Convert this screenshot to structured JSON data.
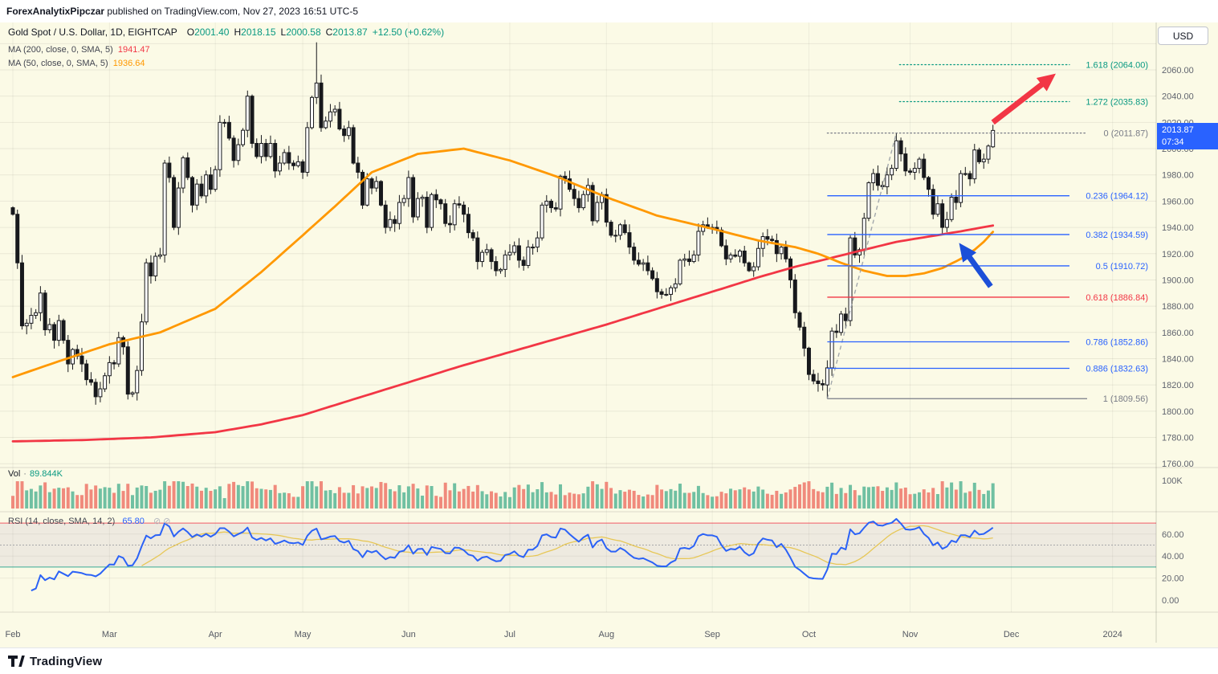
{
  "header": {
    "author": "ForexAnalytixPipczar",
    "published": " published on TradingView.com, Nov 27, 2023 16:51 UTC-5",
    "currency_button": "USD"
  },
  "legend": {
    "title": "Gold Spot / U.S. Dollar, 1D, EIGHTCAP",
    "o_key": "O",
    "o_val": "2001.40",
    "h_key": "H",
    "h_val": "2018.15",
    "l_key": "L",
    "l_val": "2000.58",
    "c_key": "C",
    "c_val": "2013.87",
    "change": "+12.50 (+0.62%)",
    "ma200_label": "MA (200, close, 0, SMA, 5)",
    "ma200_value": "1941.47",
    "ma50_label": "MA (50, close, 0, SMA, 5)",
    "ma50_value": "1936.64",
    "vol_label": "Vol",
    "vol_dot": "·",
    "vol_value": "89.844K",
    "rsi_label": "RSI (14, close, SMA, 14, 2)",
    "rsi_value": "65.80",
    "rsi_hidden_icons": "⊘ ⊘"
  },
  "badge": {
    "price": "2013.87",
    "countdown": "07:34"
  },
  "footer": {
    "brand": "TradingView"
  },
  "chart_data": {
    "type": "candlestick",
    "symbol": "Gold Spot / U.S. Dollar",
    "exchange": "EIGHTCAP",
    "timeframe": "1D",
    "last_ohlc": {
      "open": 2001.4,
      "high": 2018.15,
      "low": 2000.58,
      "close": 2013.87,
      "change": "+12.50 (+0.62%)"
    },
    "y_axis": {
      "min": 1760,
      "max": 2060,
      "step": 20,
      "ticks": [
        2060,
        2040,
        2020,
        2000,
        1980,
        1960,
        1940,
        1920,
        1900,
        1880,
        1860,
        1840,
        1820,
        1800,
        1780,
        1760
      ]
    },
    "x_axis": {
      "months": [
        {
          "label": "Feb",
          "index": 0
        },
        {
          "label": "Mar",
          "index": 21
        },
        {
          "label": "Apr",
          "index": 44
        },
        {
          "label": "May",
          "index": 63
        },
        {
          "label": "Jun",
          "index": 86
        },
        {
          "label": "Jul",
          "index": 108
        },
        {
          "label": "Aug",
          "index": 129
        },
        {
          "label": "Sep",
          "index": 152
        },
        {
          "label": "Oct",
          "index": 173
        },
        {
          "label": "Nov",
          "index": 195
        },
        {
          "label": "Dec",
          "index": 217
        },
        {
          "label": "2024",
          "index": 239
        }
      ]
    },
    "first_open": 1955,
    "closes": [
      1950,
      1913,
      1865,
      1867,
      1873,
      1875,
      1890,
      1862,
      1866,
      1854,
      1869,
      1854,
      1836,
      1847,
      1842,
      1836,
      1824,
      1822,
      1811,
      1817,
      1827,
      1837,
      1836,
      1856,
      1849,
      1813,
      1814,
      1831,
      1868,
      1913,
      1903,
      1918,
      1919,
      1989,
      1978,
      1940,
      1970,
      1993,
      1978,
      1957,
      1973,
      1964,
      1980,
      1969,
      1984,
      2020,
      2020,
      2008,
      1991,
      2003,
      2014,
      2040,
      2004,
      1994,
      2004,
      1994,
      2004,
      1983,
      1989,
      1997,
      1989,
      1987,
      1990,
      1982,
      2016,
      2039,
      2050,
      2016,
      2021,
      2028,
      2030,
      2015,
      2010,
      2016,
      1989,
      1982,
      1957,
      1977,
      1970,
      1975,
      1957,
      1940,
      1946,
      1943,
      1959,
      1962,
      1978,
      1948,
      1962,
      1963,
      1940,
      1965,
      1961,
      1958,
      1943,
      1942,
      1958,
      1957,
      1950,
      1936,
      1932,
      1914,
      1921,
      1923,
      1914,
      1907,
      1908,
      1919,
      1921,
      1926,
      1915,
      1911,
      1925,
      1925,
      1932,
      1957,
      1960,
      1955,
      1954,
      1979,
      1977,
      1969,
      1962,
      1955,
      1965,
      1972,
      1945,
      1959,
      1965,
      1944,
      1934,
      1934,
      1942,
      1936,
      1925,
      1915,
      1912,
      1913,
      1907,
      1901,
      1891,
      1889,
      1889,
      1894,
      1897,
      1915,
      1916,
      1914,
      1919,
      1937,
      1942,
      1940,
      1940,
      1938,
      1926,
      1916,
      1919,
      1918,
      1922,
      1913,
      1907,
      1910,
      1924,
      1933,
      1931,
      1930,
      1920,
      1925,
      1916,
      1900,
      1875,
      1864,
      1848,
      1828,
      1823,
      1821,
      1820,
      1833,
      1861,
      1860,
      1874,
      1869,
      1932,
      1919,
      1923,
      1947,
      1974,
      1981,
      1972,
      1971,
      1980,
      1985,
      2006,
      1996,
      1983,
      1982,
      1985,
      1992,
      1978,
      1969,
      1950,
      1958,
      1940,
      1946,
      1963,
      1959,
      1981,
      1981,
      1977,
      1999,
      1990,
      1992,
      2002,
      2013.87
    ],
    "special_wicks": {
      "66": {
        "high": 2081
      },
      "177": {
        "low": 1809.56
      },
      "192": {
        "high": 2011.87
      }
    },
    "last_candle": {
      "open": 2001.4,
      "high": 2018.15,
      "low": 2000.58,
      "close": 2013.87
    },
    "ma200": {
      "label": "MA 200",
      "color": "#f23645",
      "last_value": 1941.47,
      "anchors": [
        [
          0,
          1777
        ],
        [
          15,
          1778
        ],
        [
          30,
          1780
        ],
        [
          44,
          1784
        ],
        [
          54,
          1790
        ],
        [
          63,
          1797
        ],
        [
          74,
          1809
        ],
        [
          86,
          1822
        ],
        [
          97,
          1834
        ],
        [
          108,
          1845
        ],
        [
          119,
          1856
        ],
        [
          129,
          1866
        ],
        [
          140,
          1878
        ],
        [
          152,
          1891
        ],
        [
          162,
          1902
        ],
        [
          170,
          1910
        ],
        [
          177,
          1916
        ],
        [
          185,
          1923
        ],
        [
          192,
          1929
        ],
        [
          199,
          1933
        ],
        [
          206,
          1937
        ],
        [
          213,
          1941.47
        ]
      ]
    },
    "ma50": {
      "label": "MA 50",
      "color": "#ff9800",
      "last_value": 1936.64,
      "anchors": [
        [
          0,
          1826
        ],
        [
          10,
          1838
        ],
        [
          21,
          1851
        ],
        [
          32,
          1860
        ],
        [
          44,
          1878
        ],
        [
          54,
          1906
        ],
        [
          63,
          1934
        ],
        [
          70,
          1956
        ],
        [
          78,
          1982
        ],
        [
          88,
          1996
        ],
        [
          98,
          2000
        ],
        [
          108,
          1991
        ],
        [
          118,
          1979
        ],
        [
          129,
          1963
        ],
        [
          140,
          1949
        ],
        [
          152,
          1939
        ],
        [
          162,
          1930
        ],
        [
          170,
          1925
        ],
        [
          175,
          1920
        ],
        [
          180,
          1913
        ],
        [
          185,
          1907
        ],
        [
          190,
          1903
        ],
        [
          194,
          1903
        ],
        [
          198,
          1905
        ],
        [
          202,
          1909
        ],
        [
          206,
          1916
        ],
        [
          209,
          1923
        ],
        [
          211,
          1929
        ],
        [
          213,
          1936.64
        ]
      ]
    },
    "fib": {
      "from_index": 177,
      "from_price": 1809.56,
      "to_index": 192,
      "to_price": 2011.87,
      "levels": [
        {
          "label": "1.618 (2064.00)",
          "price": 2064.0,
          "color": "#089981",
          "style": "dotted",
          "from": "end"
        },
        {
          "label": "1.272 (2035.83)",
          "price": 2035.83,
          "color": "#089981",
          "style": "dotted",
          "from": "end"
        },
        {
          "label": "0 (2011.87)",
          "price": 2011.87,
          "color": "#787b86",
          "style": "dotted",
          "from": "low",
          "wide": true
        },
        {
          "label": "0.236 (1964.12)",
          "price": 1964.12,
          "color": "#2962ff",
          "style": "solid",
          "from": "low"
        },
        {
          "label": "0.382 (1934.59)",
          "price": 1934.59,
          "color": "#2962ff",
          "style": "solid",
          "from": "low"
        },
        {
          "label": "0.5 (1910.72)",
          "price": 1910.72,
          "color": "#2962ff",
          "style": "solid",
          "from": "low"
        },
        {
          "label": "0.618 (1886.84)",
          "price": 1886.84,
          "color": "#f23645",
          "style": "solid",
          "from": "low"
        },
        {
          "label": "0.786 (1852.86)",
          "price": 1852.86,
          "color": "#2962ff",
          "style": "solid",
          "from": "low"
        },
        {
          "label": "0.886 (1832.63)",
          "price": 1832.63,
          "color": "#2962ff",
          "style": "solid",
          "from": "low"
        },
        {
          "label": "1 (1809.56)",
          "price": 1809.56,
          "color": "#787b86",
          "style": "solid",
          "from": "low",
          "wide": true
        }
      ]
    },
    "volume": {
      "axis_label": "100K",
      "last_k": 89.844,
      "legend_value": "89.844K"
    },
    "rsi": {
      "period": 14,
      "last_value": 65.8,
      "upper_band": 70,
      "lower_band": 30,
      "middle": 50,
      "axis_ticks": [
        60,
        40,
        20,
        0
      ]
    },
    "arrows": [
      {
        "name": "bullish-projection-arrow",
        "color": "#f23645",
        "from": [
          213,
          2020
        ],
        "to": [
          225.5,
          2054
        ]
      },
      {
        "name": "support-bounce-arrow",
        "color": "#1c4fd8",
        "from": [
          212.5,
          1895
        ],
        "to": [
          206.5,
          1924
        ]
      }
    ],
    "colors": {
      "background": "#fbfae6",
      "candle": "#17181c",
      "up_green": "#089981",
      "down_red": "#f23645",
      "fib_blue": "#2962ff",
      "fib_gray": "#787b86",
      "vol_up": "#70c0a2",
      "vol_down": "#f08a7c",
      "rsi": "#2b62f6",
      "rsi_ma": "#e6c54f",
      "badge_blue": "#2962ff"
    }
  }
}
